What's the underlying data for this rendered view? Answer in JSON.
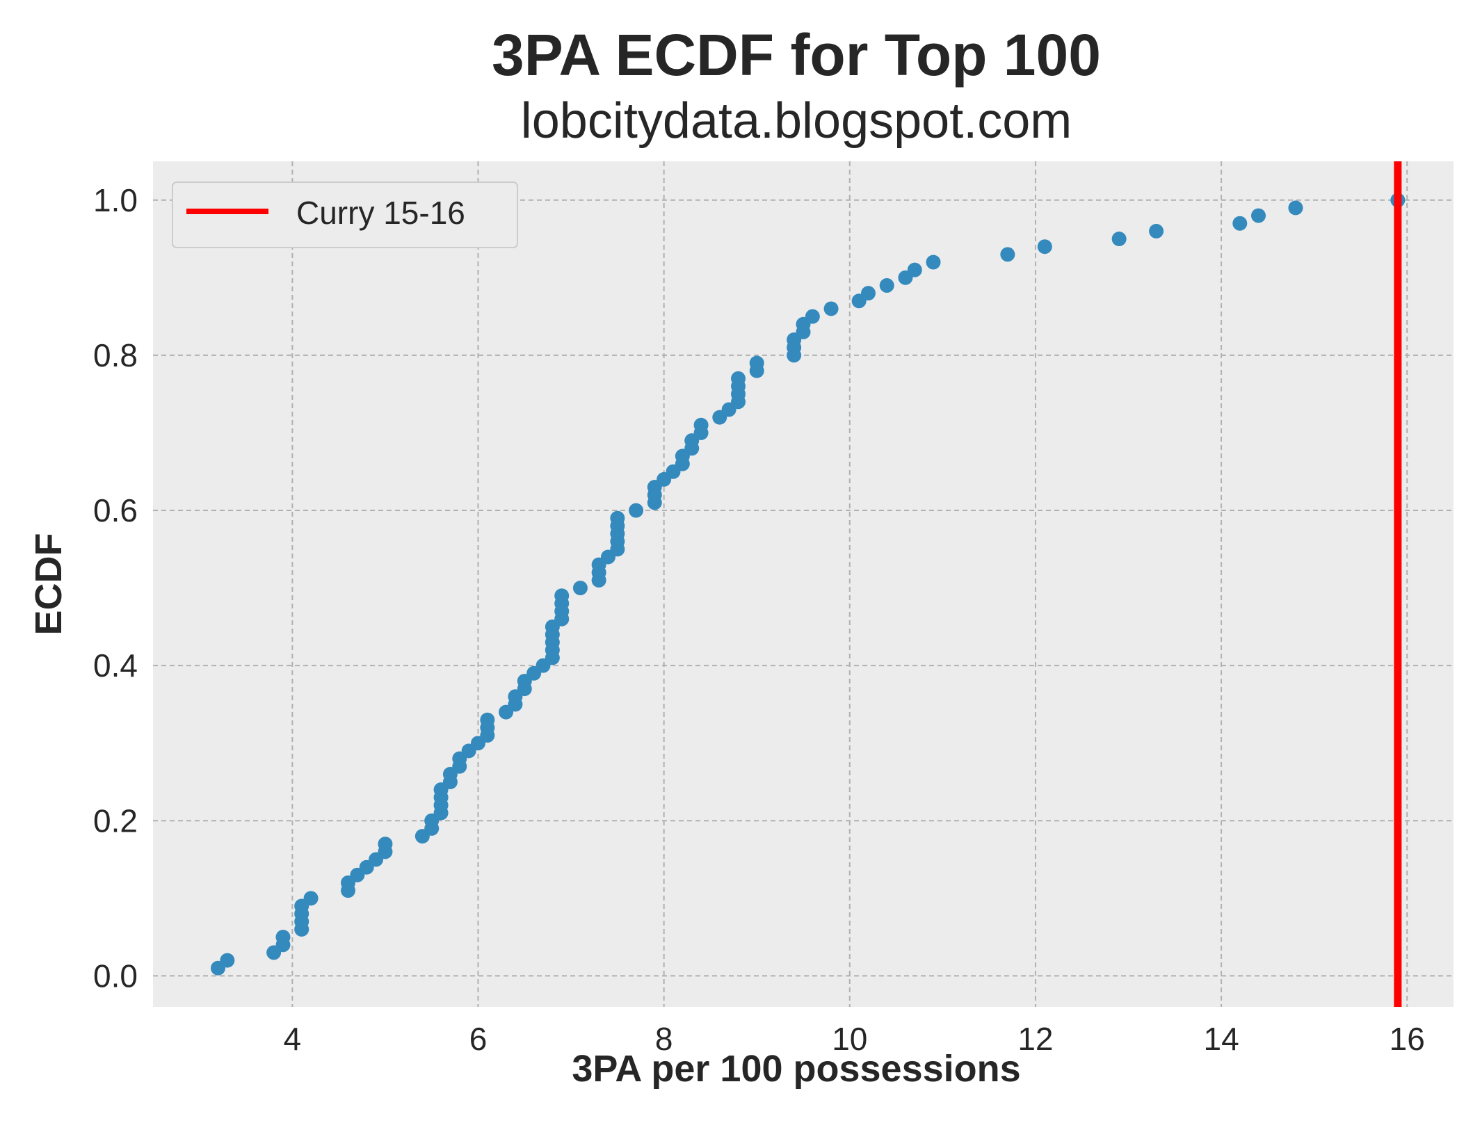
{
  "chart_data": {
    "type": "scatter",
    "title": "3PA ECDF for Top 100",
    "subtitle": "lobcitydata.blogspot.com",
    "xlabel": "3PA per 100 possessions",
    "ylabel": "ECDF",
    "xlim": [
      2.5,
      16.5
    ],
    "ylim": [
      -0.04,
      1.05
    ],
    "xticks": [
      4,
      6,
      8,
      10,
      12,
      14,
      16
    ],
    "xtick_labels": [
      "4",
      "6",
      "8",
      "10",
      "12",
      "14",
      "16"
    ],
    "yticks": [
      0.0,
      0.2,
      0.4,
      0.6,
      0.8,
      1.0
    ],
    "ytick_labels": [
      "0.0",
      "0.2",
      "0.4",
      "0.6",
      "0.8",
      "1.0"
    ],
    "grid": true,
    "legend_position": "top-left",
    "colors": {
      "points": "#348abd",
      "reference_line": "#ff0000",
      "background": "#ececec"
    },
    "series": [
      {
        "values": [
          [
            3.2,
            0.01
          ],
          [
            3.3,
            0.02
          ],
          [
            3.8,
            0.03
          ],
          [
            3.9,
            0.04
          ],
          [
            3.9,
            0.05
          ],
          [
            4.1,
            0.06
          ],
          [
            4.1,
            0.07
          ],
          [
            4.1,
            0.08
          ],
          [
            4.1,
            0.09
          ],
          [
            4.2,
            0.1
          ],
          [
            4.6,
            0.11
          ],
          [
            4.6,
            0.12
          ],
          [
            4.7,
            0.13
          ],
          [
            4.8,
            0.14
          ],
          [
            4.9,
            0.15
          ],
          [
            5.0,
            0.16
          ],
          [
            5.0,
            0.17
          ],
          [
            5.4,
            0.18
          ],
          [
            5.5,
            0.19
          ],
          [
            5.5,
            0.2
          ],
          [
            5.6,
            0.21
          ],
          [
            5.6,
            0.22
          ],
          [
            5.6,
            0.23
          ],
          [
            5.6,
            0.24
          ],
          [
            5.7,
            0.25
          ],
          [
            5.7,
            0.26
          ],
          [
            5.8,
            0.27
          ],
          [
            5.8,
            0.28
          ],
          [
            5.9,
            0.29
          ],
          [
            6.0,
            0.3
          ],
          [
            6.1,
            0.31
          ],
          [
            6.1,
            0.32
          ],
          [
            6.1,
            0.33
          ],
          [
            6.3,
            0.34
          ],
          [
            6.4,
            0.35
          ],
          [
            6.4,
            0.36
          ],
          [
            6.5,
            0.37
          ],
          [
            6.5,
            0.38
          ],
          [
            6.6,
            0.39
          ],
          [
            6.7,
            0.4
          ],
          [
            6.8,
            0.41
          ],
          [
            6.8,
            0.42
          ],
          [
            6.8,
            0.43
          ],
          [
            6.8,
            0.44
          ],
          [
            6.8,
            0.45
          ],
          [
            6.9,
            0.46
          ],
          [
            6.9,
            0.47
          ],
          [
            6.9,
            0.48
          ],
          [
            6.9,
            0.49
          ],
          [
            7.1,
            0.5
          ],
          [
            7.3,
            0.51
          ],
          [
            7.3,
            0.52
          ],
          [
            7.3,
            0.53
          ],
          [
            7.4,
            0.54
          ],
          [
            7.5,
            0.55
          ],
          [
            7.5,
            0.56
          ],
          [
            7.5,
            0.57
          ],
          [
            7.5,
            0.58
          ],
          [
            7.5,
            0.59
          ],
          [
            7.7,
            0.6
          ],
          [
            7.9,
            0.61
          ],
          [
            7.9,
            0.62
          ],
          [
            7.9,
            0.63
          ],
          [
            8.0,
            0.64
          ],
          [
            8.1,
            0.65
          ],
          [
            8.2,
            0.66
          ],
          [
            8.2,
            0.67
          ],
          [
            8.3,
            0.68
          ],
          [
            8.3,
            0.69
          ],
          [
            8.4,
            0.7
          ],
          [
            8.4,
            0.71
          ],
          [
            8.6,
            0.72
          ],
          [
            8.7,
            0.73
          ],
          [
            8.8,
            0.74
          ],
          [
            8.8,
            0.75
          ],
          [
            8.8,
            0.76
          ],
          [
            8.8,
            0.77
          ],
          [
            9.0,
            0.78
          ],
          [
            9.0,
            0.79
          ],
          [
            9.4,
            0.8
          ],
          [
            9.4,
            0.81
          ],
          [
            9.4,
            0.82
          ],
          [
            9.5,
            0.83
          ],
          [
            9.5,
            0.84
          ],
          [
            9.6,
            0.85
          ],
          [
            9.8,
            0.86
          ],
          [
            10.1,
            0.87
          ],
          [
            10.2,
            0.88
          ],
          [
            10.4,
            0.89
          ],
          [
            10.6,
            0.9
          ],
          [
            10.7,
            0.91
          ],
          [
            10.9,
            0.92
          ],
          [
            11.7,
            0.93
          ],
          [
            12.1,
            0.94
          ],
          [
            12.9,
            0.95
          ],
          [
            13.3,
            0.96
          ],
          [
            14.2,
            0.97
          ],
          [
            14.4,
            0.98
          ],
          [
            14.8,
            0.99
          ],
          [
            15.9,
            1.0
          ]
        ]
      }
    ],
    "reference_line": {
      "name": "Curry 15-16",
      "x": 15.9
    }
  }
}
